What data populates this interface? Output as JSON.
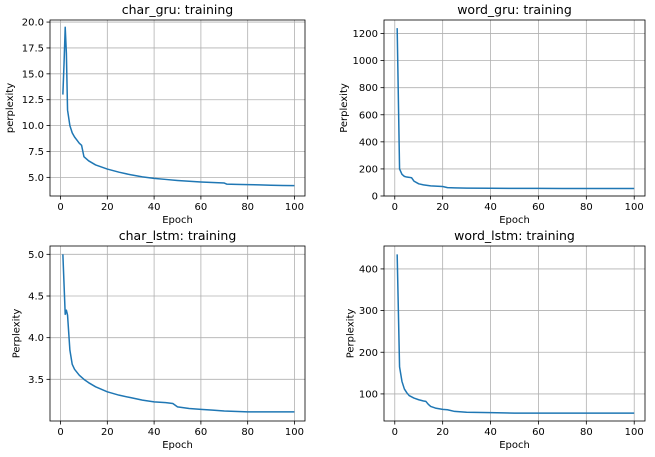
{
  "chart_data": [
    {
      "type": "line",
      "title": "char_gru: training",
      "xlabel": "Epoch",
      "ylabel": "perplexity",
      "xlim": [
        -4.5,
        104.5
      ],
      "ylim": [
        3.2,
        20.2
      ],
      "xticks": [
        0,
        20,
        40,
        60,
        80,
        100
      ],
      "yticks": [
        5.0,
        7.5,
        10.0,
        12.5,
        15.0,
        17.5,
        20.0
      ],
      "ytick_labels": [
        "5.0",
        "7.5",
        "10.0",
        "12.5",
        "15.0",
        "17.5",
        "20.0"
      ],
      "grid": true,
      "series": [
        {
          "x": [
            1,
            1.5,
            2,
            2.5,
            3,
            4,
            5,
            6,
            7,
            8,
            9,
            10,
            12,
            15,
            20,
            25,
            30,
            35,
            40,
            45,
            50,
            55,
            60,
            65,
            70,
            71,
            75,
            80,
            85,
            90,
            95,
            100
          ],
          "values": [
            13.0,
            16.0,
            19.5,
            17.0,
            11.5,
            10.0,
            9.3,
            8.9,
            8.6,
            8.3,
            8.1,
            7.0,
            6.6,
            6.2,
            5.8,
            5.5,
            5.25,
            5.05,
            4.9,
            4.8,
            4.7,
            4.62,
            4.55,
            4.5,
            4.45,
            4.35,
            4.32,
            4.3,
            4.27,
            4.24,
            4.22,
            4.2
          ]
        }
      ]
    },
    {
      "type": "line",
      "title": "word_gru: training",
      "xlabel": "Epoch",
      "ylabel": "Perplexity",
      "xlim": [
        -4.5,
        104.5
      ],
      "ylim": [
        0,
        1300
      ],
      "xticks": [
        0,
        20,
        40,
        60,
        80,
        100
      ],
      "yticks": [
        0,
        200,
        400,
        600,
        800,
        1000,
        1200
      ],
      "ytick_labels": [
        "0",
        "200",
        "400",
        "600",
        "800",
        "1000",
        "1200"
      ],
      "grid": true,
      "series": [
        {
          "x": [
            1,
            2,
            3,
            4,
            5,
            6,
            7,
            8,
            10,
            12,
            15,
            20,
            22,
            25,
            30,
            40,
            50,
            60,
            70,
            80,
            90,
            100
          ],
          "values": [
            1240,
            200,
            160,
            145,
            140,
            138,
            135,
            110,
            90,
            82,
            75,
            70,
            62,
            60,
            58,
            57,
            56,
            56,
            55,
            55,
            55,
            55
          ]
        }
      ]
    },
    {
      "type": "line",
      "title": "char_lstm: training",
      "xlabel": "Epoch",
      "ylabel": "Perplexity",
      "xlim": [
        -4.5,
        104.5
      ],
      "ylim": [
        3.0,
        5.1
      ],
      "xticks": [
        0,
        20,
        40,
        60,
        80,
        100
      ],
      "yticks": [
        3.5,
        4.0,
        4.5,
        5.0
      ],
      "ytick_labels": [
        "3.5",
        "4.0",
        "4.5",
        "5.0"
      ],
      "grid": true,
      "series": [
        {
          "x": [
            1,
            2,
            2.5,
            3,
            4,
            5,
            6,
            8,
            10,
            12,
            15,
            20,
            25,
            30,
            35,
            40,
            45,
            48,
            50,
            55,
            60,
            65,
            70,
            80,
            90,
            100
          ],
          "values": [
            5.0,
            4.28,
            4.33,
            4.27,
            3.85,
            3.68,
            3.62,
            3.55,
            3.5,
            3.46,
            3.41,
            3.35,
            3.31,
            3.28,
            3.25,
            3.23,
            3.22,
            3.21,
            3.17,
            3.15,
            3.14,
            3.13,
            3.12,
            3.11,
            3.11,
            3.11
          ]
        }
      ]
    },
    {
      "type": "line",
      "title": "word_lstm: training",
      "xlabel": "Epoch",
      "ylabel": "Perplexity",
      "xlim": [
        -4.5,
        104.5
      ],
      "ylim": [
        35,
        455
      ],
      "xticks": [
        0,
        20,
        40,
        60,
        80,
        100
      ],
      "yticks": [
        100,
        200,
        300,
        400
      ],
      "ytick_labels": [
        "100",
        "200",
        "300",
        "400"
      ],
      "grid": true,
      "series": [
        {
          "x": [
            1,
            2,
            3,
            4,
            5,
            6,
            8,
            10,
            12,
            13,
            14,
            15,
            17,
            20,
            22,
            25,
            30,
            40,
            50,
            60,
            70,
            80,
            90,
            100
          ],
          "values": [
            435,
            165,
            130,
            112,
            103,
            96,
            90,
            86,
            83,
            82,
            75,
            70,
            66,
            63,
            62,
            58,
            56,
            55,
            54,
            54,
            54,
            54,
            54,
            54
          ]
        }
      ]
    }
  ]
}
